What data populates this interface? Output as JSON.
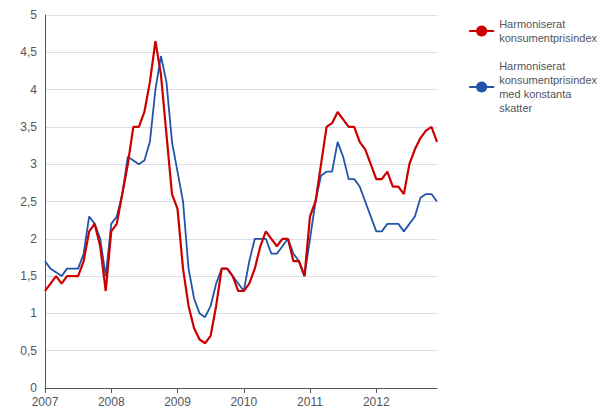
{
  "chart_data": {
    "type": "line",
    "categories": [
      "2007",
      null,
      null,
      null,
      null,
      null,
      null,
      null,
      null,
      null,
      null,
      null,
      "2008",
      null,
      null,
      null,
      null,
      null,
      null,
      null,
      null,
      null,
      null,
      null,
      "2009",
      null,
      null,
      null,
      null,
      null,
      null,
      null,
      null,
      null,
      null,
      null,
      "2010",
      null,
      null,
      null,
      null,
      null,
      null,
      null,
      null,
      null,
      null,
      null,
      "2011",
      null,
      null,
      null,
      null,
      null,
      null,
      null,
      null,
      null,
      null,
      null,
      "2012",
      null,
      null,
      null,
      null,
      null,
      null,
      null,
      null,
      null,
      null,
      null
    ],
    "series": [
      {
        "name": "Harmoniserat\nkonsumentprisindex",
        "color": "#cc0000",
        "values": [
          1.3,
          1.4,
          1.5,
          1.4,
          1.5,
          1.5,
          1.5,
          1.7,
          2.1,
          2.2,
          1.9,
          1.3,
          2.1,
          2.2,
          2.6,
          3.0,
          3.5,
          3.5,
          3.7,
          4.1,
          4.65,
          4.2,
          3.4,
          2.6,
          2.4,
          1.6,
          1.1,
          0.8,
          0.65,
          0.6,
          0.7,
          1.1,
          1.6,
          1.6,
          1.5,
          1.3,
          1.3,
          1.4,
          1.6,
          1.9,
          2.1,
          2.0,
          1.9,
          2.0,
          2.0,
          1.7,
          1.7,
          1.5,
          2.3,
          2.5,
          3.0,
          3.5,
          3.55,
          3.7,
          3.6,
          3.5,
          3.5,
          3.3,
          3.2,
          3.0,
          2.8,
          2.8,
          2.9,
          2.7,
          2.7,
          2.6,
          3.0,
          3.2,
          3.35,
          3.45,
          3.5,
          3.3
        ]
      },
      {
        "name": "Harmoniserat\nkonsumentprisindex\nmed konstanta\nskatter",
        "color": "#2255aa",
        "values": [
          1.7,
          1.6,
          1.55,
          1.5,
          1.6,
          1.6,
          1.6,
          1.8,
          2.3,
          2.2,
          2.0,
          1.5,
          2.2,
          2.3,
          2.6,
          3.1,
          3.05,
          3.0,
          3.05,
          3.3,
          4.0,
          4.45,
          4.1,
          3.3,
          2.9,
          2.5,
          1.6,
          1.2,
          1.0,
          0.95,
          1.1,
          1.4,
          1.6,
          1.6,
          1.5,
          1.4,
          1.3,
          1.7,
          2.0,
          2.0,
          2.0,
          1.8,
          1.8,
          1.9,
          2.0,
          1.8,
          1.7,
          1.5,
          2.0,
          2.5,
          2.85,
          2.9,
          2.9,
          3.3,
          3.1,
          2.8,
          2.8,
          2.7,
          2.5,
          2.3,
          2.1,
          2.1,
          2.2,
          2.2,
          2.2,
          2.1,
          2.2,
          2.3,
          2.55,
          2.6,
          2.6,
          2.5
        ]
      }
    ],
    "ylim": [
      0,
      5
    ],
    "yticks": [
      0,
      {
        "value": 0.5,
        "label": "0,5"
      },
      1,
      {
        "value": 1.5,
        "label": "1,5"
      },
      2,
      {
        "value": 2.5,
        "label": "2,5"
      },
      3,
      {
        "value": 3.5,
        "label": "3,5"
      },
      4,
      {
        "value": 4.5,
        "label": "4,5"
      },
      5
    ],
    "grid": true,
    "legend": "upper right"
  }
}
